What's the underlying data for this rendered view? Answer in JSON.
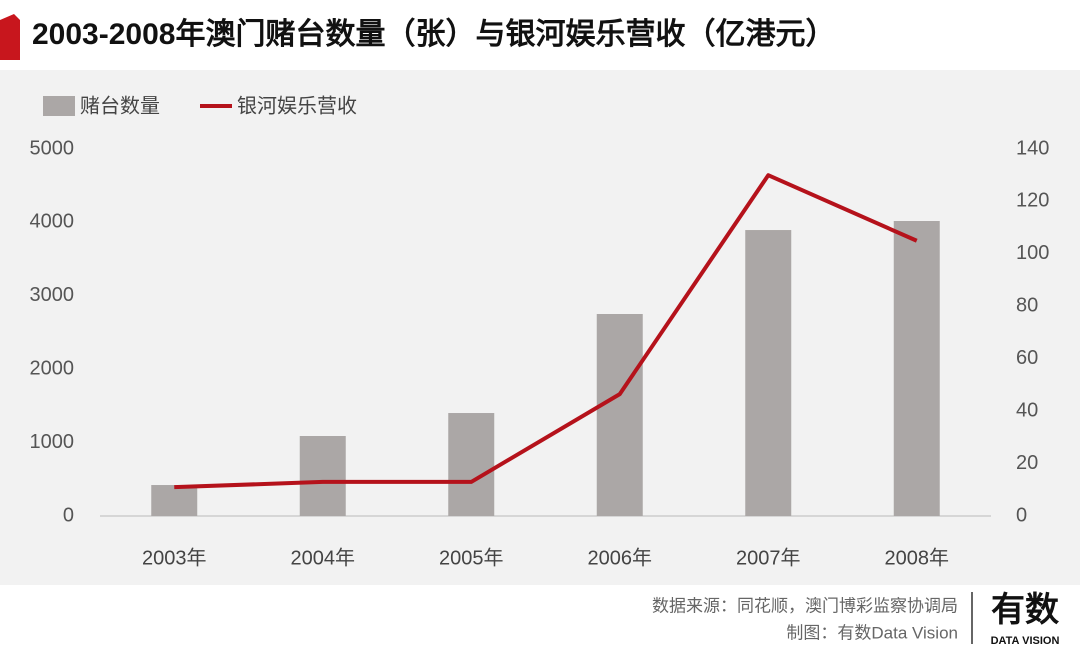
{
  "chart_data": {
    "type": "bar_line",
    "title": "2003-2008年澳门赌台数量（张）与银河娱乐营收（亿港元）",
    "categories": [
      "2003年",
      "2004年",
      "2005年",
      "2006年",
      "2007年",
      "2008年"
    ],
    "series": [
      {
        "name": "赌台数量",
        "color": "#aba7a6",
        "type": "bar",
        "values": [
          422,
          1090,
          1403,
          2752,
          3896,
          4019
        ]
      },
      {
        "name": "银河娱乐营收",
        "color": "#b5121b",
        "type": "line",
        "axis": "y2",
        "values": [
          11,
          13,
          13,
          46.5,
          130,
          105
        ]
      }
    ],
    "ylim": [
      0,
      5000
    ],
    "yticks": [
      0,
      1000,
      2000,
      3000,
      4000,
      5000
    ],
    "y2lim": [
      0,
      140
    ],
    "y2ticks": [
      0,
      20,
      40,
      60,
      80,
      100,
      120,
      140
    ]
  },
  "footer": {
    "source": "数据来源：同花顺，澳门博彩监察协调局",
    "credit": "制图：有数Data Vision",
    "logo": "有数",
    "logo_sub": "DATA VISION"
  }
}
